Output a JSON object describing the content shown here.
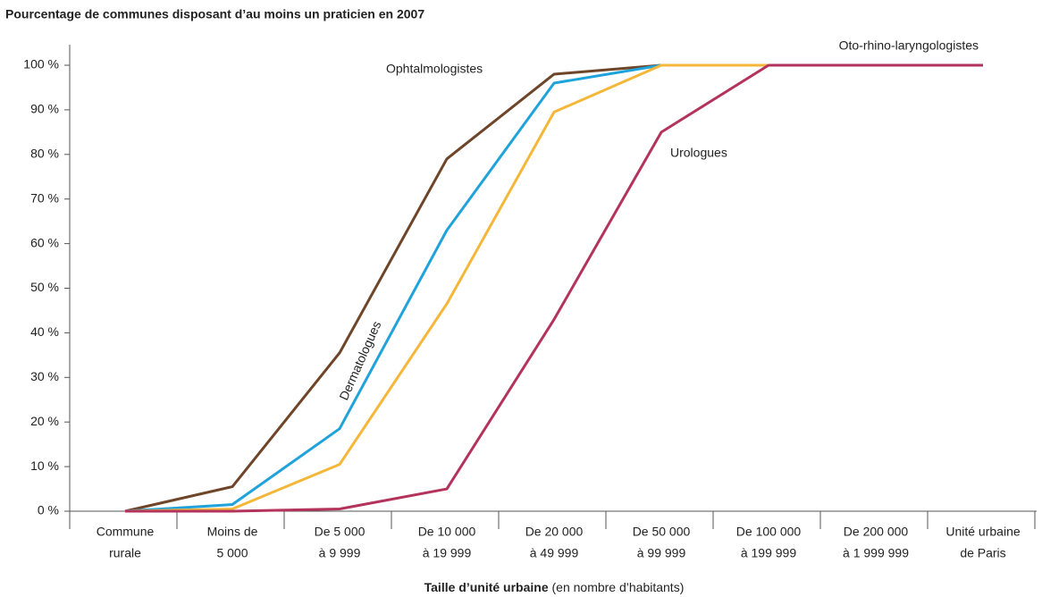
{
  "chart_data": {
    "type": "line",
    "title": "Pourcentage de communes disposant d’au moins un praticien en 2007",
    "xlabel": "Taille d’unité urbaine",
    "xlabel_detail": "(en nombre d’habitants)",
    "categories": [
      [
        "Commune",
        "rurale"
      ],
      [
        "Moins de",
        "5 000"
      ],
      [
        "De 5 000",
        "à 9 999"
      ],
      [
        "De 10 000",
        "à 19 999"
      ],
      [
        "De 20 000",
        "à 49 999"
      ],
      [
        "De 50 000",
        "à 99 999"
      ],
      [
        "De 100 000",
        "à 199 999"
      ],
      [
        "De 200 000",
        "à 1 999 999"
      ],
      [
        "Unité urbaine",
        "de Paris"
      ]
    ],
    "series": [
      {
        "name": "Ophtalmologistes",
        "color": "#6e4528",
        "values": [
          0,
          5.5,
          35.5,
          79,
          98,
          100,
          100,
          100,
          100
        ]
      },
      {
        "name": "Dermatologues",
        "color": "#1fa3da",
        "values": [
          0,
          1.5,
          18.5,
          63,
          96,
          100,
          100,
          100,
          100
        ]
      },
      {
        "name": "Oto-rhino-laryngologistes",
        "color": "#f4b73a",
        "values": [
          0,
          0.5,
          10.5,
          46.5,
          89.5,
          100,
          100,
          100,
          100
        ]
      },
      {
        "name": "Urologues",
        "color": "#b3335c",
        "values": [
          0,
          0,
          0.5,
          5,
          43,
          85,
          100,
          100,
          100
        ]
      }
    ],
    "ylim": [
      0,
      100
    ],
    "yticks": [
      {
        "value": 0,
        "label": "0 %"
      },
      {
        "value": 10,
        "label": "10 %"
      },
      {
        "value": 20,
        "label": "20 %"
      },
      {
        "value": 30,
        "label": "30 %"
      },
      {
        "value": 40,
        "label": "40 %"
      },
      {
        "value": 50,
        "label": "50 %"
      },
      {
        "value": 60,
        "label": "60 %"
      },
      {
        "value": 70,
        "label": "70 %"
      },
      {
        "value": 80,
        "label": "80 %"
      },
      {
        "value": 90,
        "label": "90 %"
      },
      {
        "value": 100,
        "label": "100 %"
      }
    ],
    "grid": false
  }
}
